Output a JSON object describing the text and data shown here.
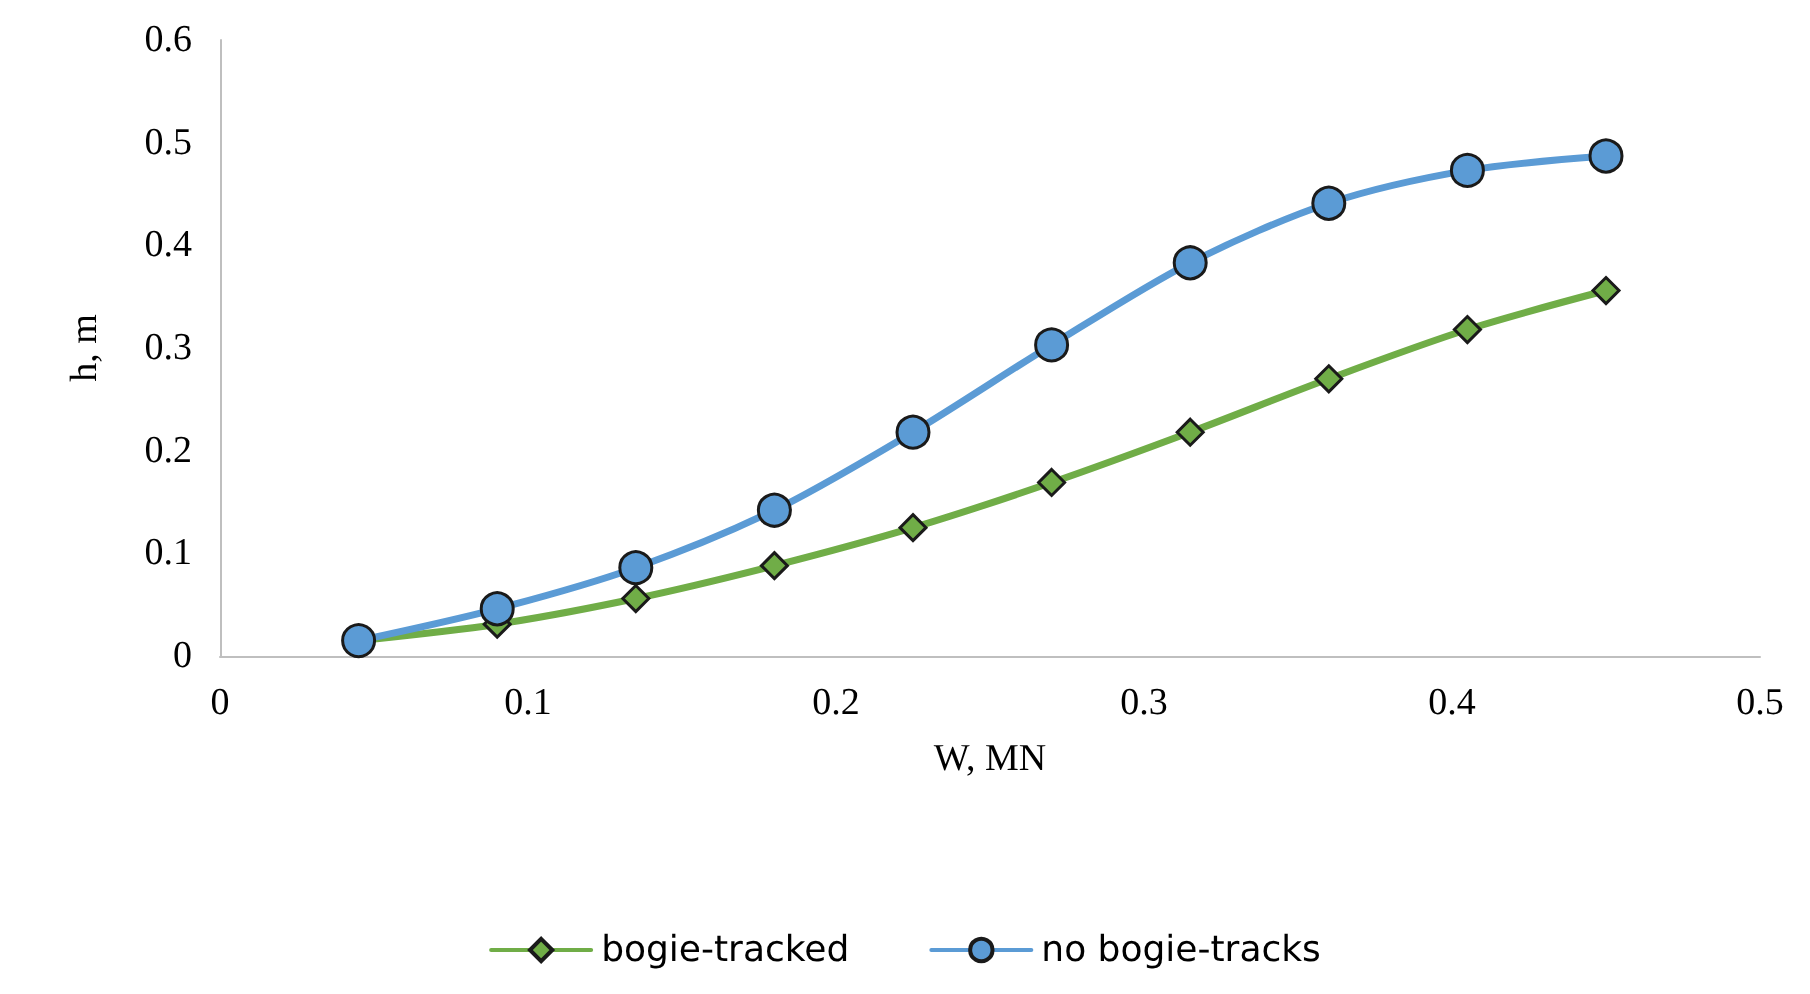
{
  "chart_data": {
    "type": "line",
    "xlabel": "W, MN",
    "ylabel": "h, m",
    "x": [
      0.045,
      0.09,
      0.135,
      0.18,
      0.225,
      0.27,
      0.315,
      0.36,
      0.405,
      0.45
    ],
    "xlim": [
      0,
      0.5
    ],
    "xticks": [
      0,
      0.1,
      0.2,
      0.3,
      0.4,
      0.5
    ],
    "ylim": [
      0,
      0.6
    ],
    "yticks": [
      0,
      0.1,
      0.2,
      0.3,
      0.4,
      0.5,
      0.6
    ],
    "grid": false,
    "legend": "bottom",
    "line_style": "solid",
    "series": [
      {
        "name": "bogie-tracked",
        "color": "#70ad47",
        "marker": "diamond",
        "values": [
          0.015,
          0.031,
          0.056,
          0.088,
          0.125,
          0.169,
          0.218,
          0.27,
          0.318,
          0.356
        ]
      },
      {
        "name": "no bogie-tracks",
        "color": "#5b9bd5",
        "marker": "circle",
        "values": [
          0.015,
          0.046,
          0.086,
          0.142,
          0.218,
          0.303,
          0.383,
          0.441,
          0.473,
          0.487
        ]
      }
    ]
  }
}
